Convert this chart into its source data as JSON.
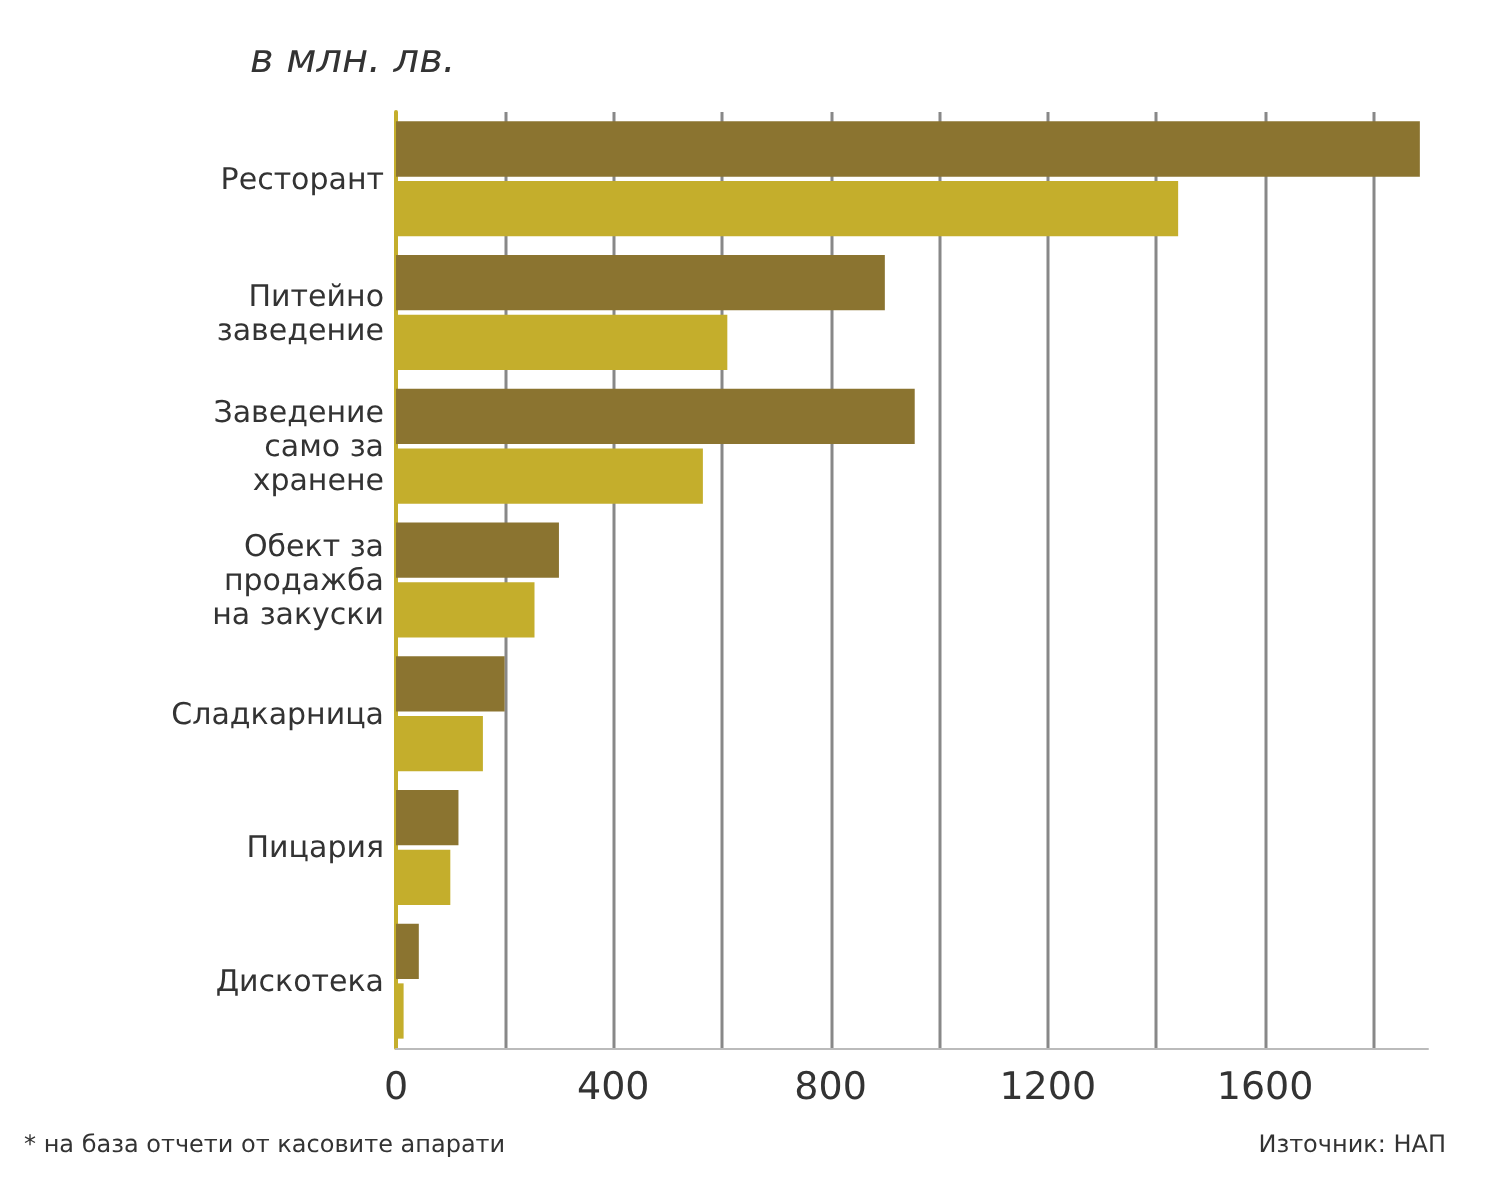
{
  "chart_data": {
    "type": "bar",
    "orientation": "horizontal",
    "title": "в млн. лв.",
    "categories": [
      "Ресторант",
      "Питейно заведение",
      "Заведение само за хранене",
      "Обект за продажба на закуски",
      "Сладкарница",
      "Пицария",
      "Дискотека"
    ],
    "series": [
      {
        "color": "#8b7430",
        "values": [
          1885,
          900,
          955,
          300,
          200,
          115,
          42
        ]
      },
      {
        "color": "#c4ae2c",
        "values": [
          1440,
          610,
          565,
          255,
          160,
          100,
          14
        ]
      }
    ],
    "xlim": [
      0,
      1900
    ],
    "xticks": [
      0,
      {
        "value": 200,
        "label": null
      },
      400,
      {
        "value": 600,
        "label": null
      },
      800,
      {
        "value": 1000,
        "label": null
      },
      1200,
      {
        "value": 1400,
        "label": null
      },
      1600,
      {
        "value": 1800,
        "label": null
      }
    ],
    "grid": "x",
    "annotations": [
      "* на база отчети от касовите апарати",
      "Източник: НАП"
    ]
  }
}
